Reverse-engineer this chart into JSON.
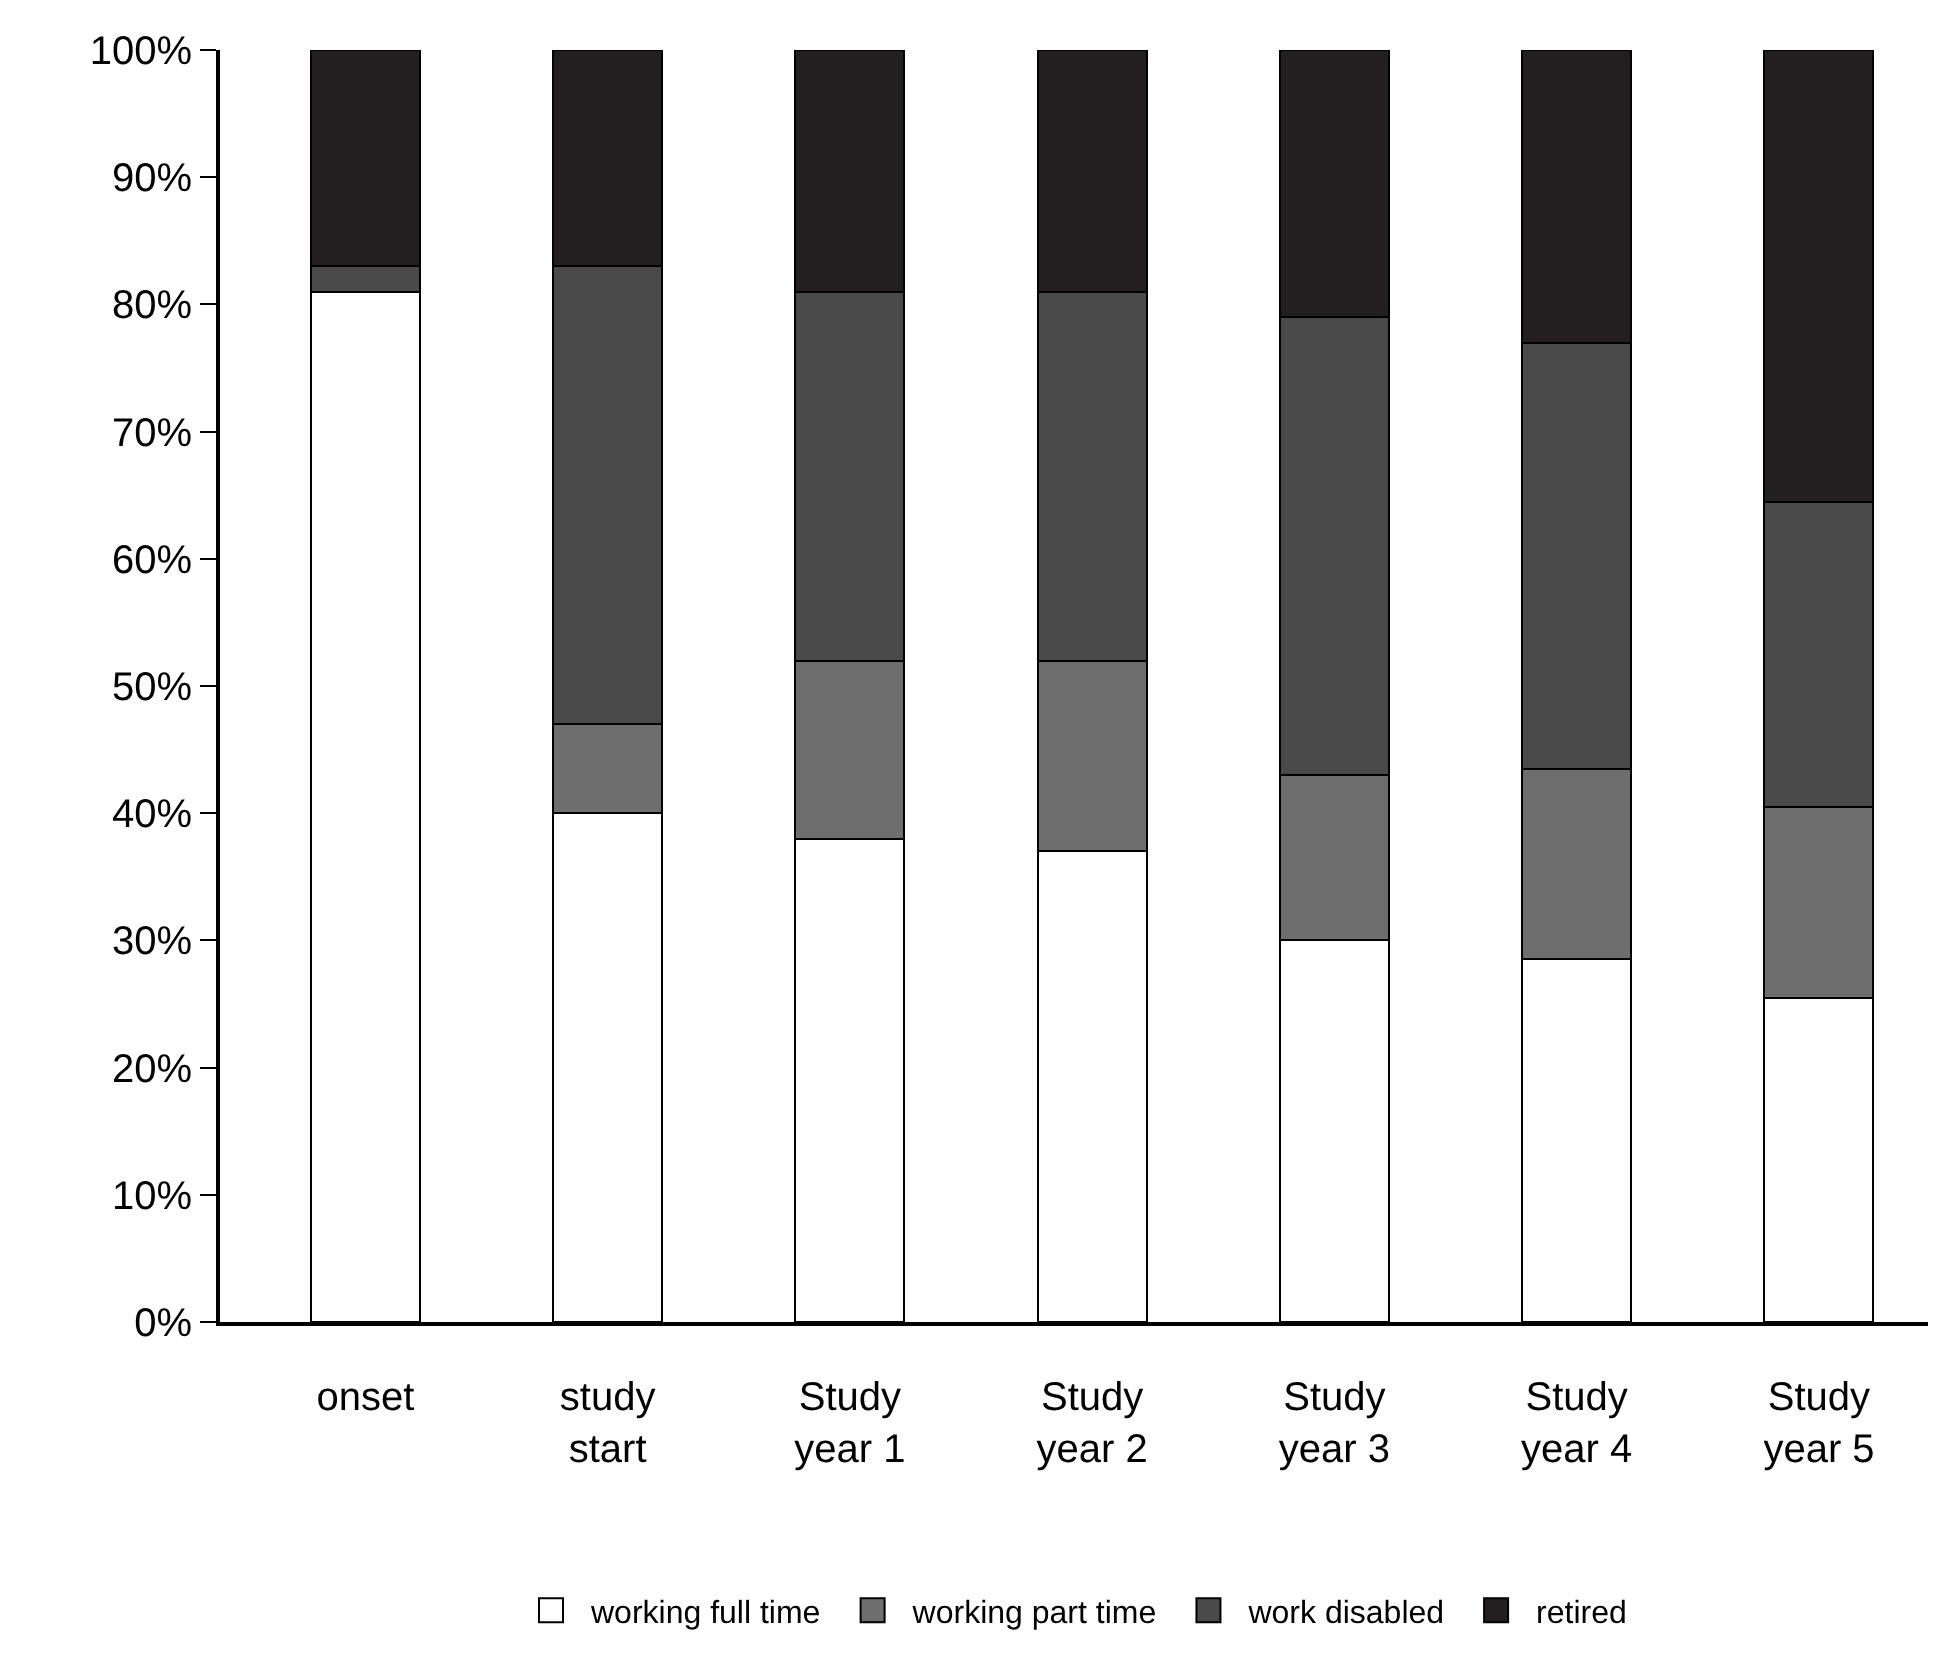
{
  "chart_data": {
    "type": "bar",
    "stacked": true,
    "categories": [
      "onset",
      "study start",
      "Study year 1",
      "Study year 2",
      "Study year 3",
      "Study year 4",
      "Study year 5"
    ],
    "series": [
      {
        "name": "working full time",
        "color": "#ffffff",
        "values": [
          81,
          40,
          38,
          37,
          30,
          28.5,
          25.5
        ]
      },
      {
        "name": "working part time",
        "color": "#6e6e6e",
        "values": [
          null,
          7,
          14,
          15,
          13,
          15,
          15
        ]
      },
      {
        "name": "work disabled",
        "color": "#4a4a4a",
        "values": [
          2,
          36,
          29,
          29,
          36,
          33.5,
          24
        ]
      },
      {
        "name": "retired",
        "color": "#231f20",
        "values": [
          17,
          17,
          19,
          19,
          21,
          23,
          35.5
        ]
      }
    ],
    "ylim": [
      0,
      100
    ],
    "yticks": [
      {
        "value": 0,
        "label": "0%"
      },
      {
        "value": 10,
        "label": "10%"
      },
      {
        "value": 20,
        "label": "20%"
      },
      {
        "value": 30,
        "label": "30%"
      },
      {
        "value": 40,
        "label": "40%"
      },
      {
        "value": 50,
        "label": "50%"
      },
      {
        "value": 60,
        "label": "60%"
      },
      {
        "value": 70,
        "label": "70%"
      },
      {
        "value": 80,
        "label": "80%"
      },
      {
        "value": 90,
        "label": "90%"
      },
      {
        "value": 100,
        "label": "100%"
      }
    ],
    "legend": "bottom"
  }
}
